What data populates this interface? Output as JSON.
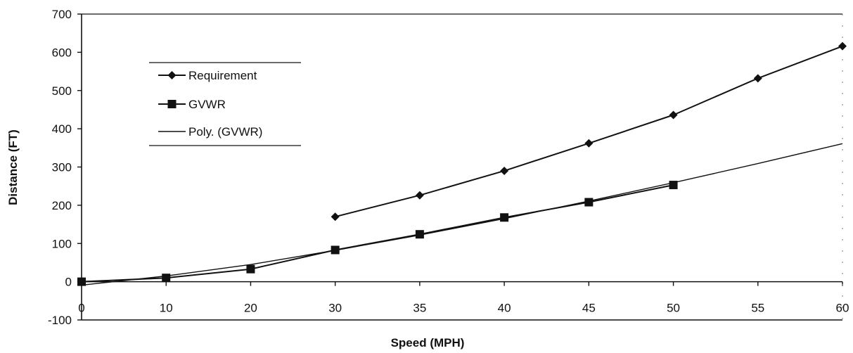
{
  "chart_data": {
    "type": "line",
    "title": "",
    "xlabel": "Speed (MPH)",
    "ylabel": "Distance (FT)",
    "categories": [
      "0",
      "10",
      "20",
      "30",
      "35",
      "40",
      "45",
      "50",
      "55",
      "60"
    ],
    "ylim": [
      -100,
      700
    ],
    "yticks": [
      "700",
      "600",
      "500",
      "400",
      "300",
      "200",
      "100",
      "0",
      "-100"
    ],
    "grid": false,
    "legend_position": "upper-left",
    "series": [
      {
        "name": "Requirement",
        "marker": "diamond",
        "values": [
          null,
          null,
          null,
          170,
          226,
          290,
          362,
          436,
          532,
          616
        ]
      },
      {
        "name": "GVWR",
        "marker": "square",
        "values": [
          0,
          10,
          33,
          83,
          124,
          168,
          208,
          253,
          null,
          null
        ]
      },
      {
        "name": "Poly. (GVWR)",
        "marker": "none",
        "values": [
          -9,
          15,
          45,
          82,
          122,
          165,
          211,
          259,
          309,
          361
        ]
      }
    ]
  }
}
